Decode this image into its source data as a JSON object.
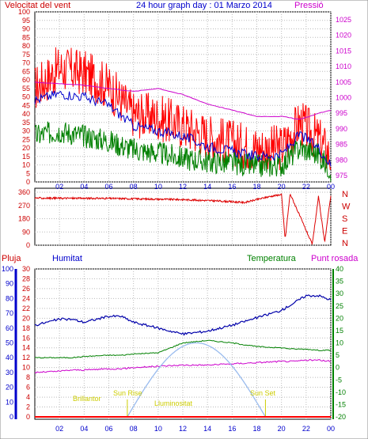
{
  "header": {
    "left_label": "Velocitat del vent",
    "title": "24 hour graph day : 01 Marzo 2014",
    "right_label": "Pressió"
  },
  "wind_panel": {
    "y_ticks": [
      "0",
      "5",
      "10",
      "15",
      "20",
      "25",
      "30",
      "35",
      "40",
      "45",
      "50",
      "55",
      "60",
      "65",
      "70",
      "75",
      "80",
      "85",
      "90",
      "95",
      "100"
    ],
    "pressure_ticks": [
      "975",
      "980",
      "985",
      "990",
      "995",
      "1000",
      "1005",
      "1010",
      "1015",
      "1020",
      "1025"
    ]
  },
  "direction_panel": {
    "y_ticks": [
      "0",
      "90",
      "180",
      "270",
      "360"
    ],
    "compass": [
      "N",
      "W",
      "S",
      "E",
      "N"
    ]
  },
  "lower_header": {
    "rain_label": "Pluja",
    "humidity_label": "Humitat",
    "temperature_label": "Temperatura",
    "dewpoint_label": "Punt rosada"
  },
  "lower_panel": {
    "humidity_ticks": [
      "0",
      "10",
      "20",
      "30",
      "40",
      "50",
      "60",
      "70",
      "80",
      "90",
      "100"
    ],
    "rain_ticks": [
      "0",
      "2",
      "4",
      "6",
      "8",
      "10",
      "12",
      "14",
      "16",
      "18",
      "20",
      "22",
      "24",
      "26",
      "28",
      "30"
    ],
    "temp_ticks": [
      "-20",
      "-15",
      "-10",
      "-5",
      "0",
      "5",
      "10",
      "15",
      "20",
      "25",
      "30",
      "35",
      "40"
    ],
    "annotations": {
      "sun_rise": "Sun Rise",
      "sun_set": "Sun Set",
      "brightness": "Brillantor",
      "luminance": "Lluminositat"
    }
  },
  "x_ticks": [
    "02",
    "04",
    "06",
    "08",
    "10",
    "12",
    "14",
    "16",
    "18",
    "20",
    "22",
    "00"
  ],
  "colors": {
    "gust": "#ff0000",
    "speed_avg": "#008000",
    "wind_blue": "#0000cc",
    "pressure": "#cc00cc",
    "direction": "#dd0000",
    "humidity": "#0000aa",
    "temperature": "#008000",
    "dewpoint": "#cc00cc",
    "solar": "#99bbee",
    "axis_red": "#cc0000",
    "axis_blue": "#0000cc",
    "axis_green": "#008000",
    "axis_magenta": "#cc00cc"
  },
  "chart_data": [
    {
      "type": "line",
      "x": [
        0,
        2,
        4,
        6,
        8,
        10,
        12,
        14,
        16,
        18,
        20,
        21.5,
        23,
        24
      ],
      "series": [
        {
          "name": "Velocitat del vent",
          "values": [
            55,
            67,
            64,
            56,
            40,
            38,
            33,
            27,
            23,
            20,
            20,
            35,
            25,
            15
          ]
        },
        {
          "name": "Velocitat del vent",
          "values": [
            27,
            30,
            27,
            24,
            19,
            17,
            14,
            12,
            11,
            9,
            10,
            20,
            16,
            7
          ]
        },
        {
          "name": "Velocitat del vent",
          "values": [
            48,
            52,
            50,
            45,
            33,
            30,
            27,
            21,
            18,
            15,
            16,
            28,
            20,
            10
          ]
        },
        {
          "name": "Pressió",
          "values": [
            1005,
            1004.5,
            1004,
            1003,
            1002,
            1003,
            1001,
            998,
            996,
            994,
            994,
            993,
            995,
            996
          ]
        }
      ],
      "ylim": [
        0,
        100
      ],
      "y2lim": [
        975,
        1025
      ],
      "xlim": [
        0,
        24
      ],
      "grid": true
    },
    {
      "type": "line",
      "x": [
        0,
        6,
        12,
        15,
        17,
        18,
        19,
        20,
        20.3,
        20.7,
        22.5,
        23,
        23.5,
        24
      ],
      "series": [
        {
          "name": "Direction",
          "values": [
            320,
            318,
            310,
            300,
            290,
            310,
            330,
            345,
            40,
            350,
            5,
            330,
            20,
            340
          ]
        }
      ],
      "ylim": [
        0,
        360
      ],
      "xlim": [
        0,
        24
      ]
    },
    {
      "type": "line",
      "x": [
        0,
        2,
        3,
        4,
        6,
        7,
        8,
        10,
        12,
        14,
        16,
        18,
        20,
        21,
        22,
        23,
        24
      ],
      "series": [
        {
          "name": "Humitat",
          "values": [
            62,
            66,
            66,
            64,
            68,
            68,
            64,
            60,
            56,
            58,
            62,
            67,
            72,
            77,
            82,
            82,
            79
          ]
        },
        {
          "name": "Temperatura",
          "values": [
            4,
            4,
            4,
            4.5,
            5,
            5,
            5.5,
            6,
            10,
            11,
            10,
            8.5,
            8,
            7.5,
            7.5,
            7,
            7
          ]
        },
        {
          "name": "Punt rosada",
          "values": [
            -2,
            -1.5,
            -1,
            -1,
            -0.5,
            -0.5,
            0,
            0.5,
            1,
            1,
            1.5,
            2,
            2.5,
            2.5,
            3,
            3,
            2.5
          ]
        }
      ],
      "ylim": [
        0,
        100
      ],
      "y2lim": [
        -20,
        40
      ],
      "xlim": [
        0,
        24
      ],
      "sun_rise_hour": 7.5,
      "sun_set_hour": 18.7
    }
  ]
}
